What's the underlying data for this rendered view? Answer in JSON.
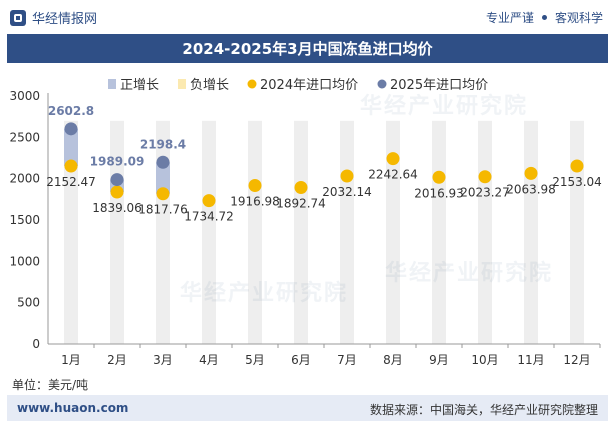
{
  "header": {
    "brand": "华经情报网",
    "tag1": "专业严谨",
    "tag2": "客观科学"
  },
  "title": "2024-2025年3月中国冻鱼进口均价",
  "unit": "单位：美元/吨",
  "footer": {
    "site": "www.huaon.com",
    "source": "数据来源：中国海关，华经产业研究院整理"
  },
  "watermark": "华经产业研究院",
  "colors": {
    "series2024": "#f5b800",
    "series2025": "#6b7ca6",
    "positive_bar": "#b7c2dc",
    "negative_bar": "#fbe9b0",
    "column_bg": "#eeeeee",
    "title_bg": "#2f4f86"
  },
  "chart_data": {
    "type": "scatter",
    "categories": [
      "1月",
      "2月",
      "3月",
      "4月",
      "5月",
      "6月",
      "7月",
      "8月",
      "9月",
      "10月",
      "11月",
      "12月"
    ],
    "legend": [
      "正增长",
      "负增长",
      "2024年进口均价",
      "2025年进口均价"
    ],
    "legend_position": "top",
    "series": [
      {
        "name": "2024年进口均价",
        "values": [
          2152.47,
          1839.06,
          1817.76,
          1734.72,
          1916.98,
          1892.74,
          2032.14,
          2242.64,
          2016.93,
          2023.27,
          2063.98,
          2153.04
        ]
      },
      {
        "name": "2025年进口均价",
        "values": [
          2602.8,
          1989.09,
          2198.4,
          null,
          null,
          null,
          null,
          null,
          null,
          null,
          null,
          null
        ]
      }
    ],
    "ylim": [
      0,
      3000
    ],
    "yticks": [
      0,
      500,
      1000,
      1500,
      2000,
      2500,
      3000
    ],
    "grid": false
  }
}
